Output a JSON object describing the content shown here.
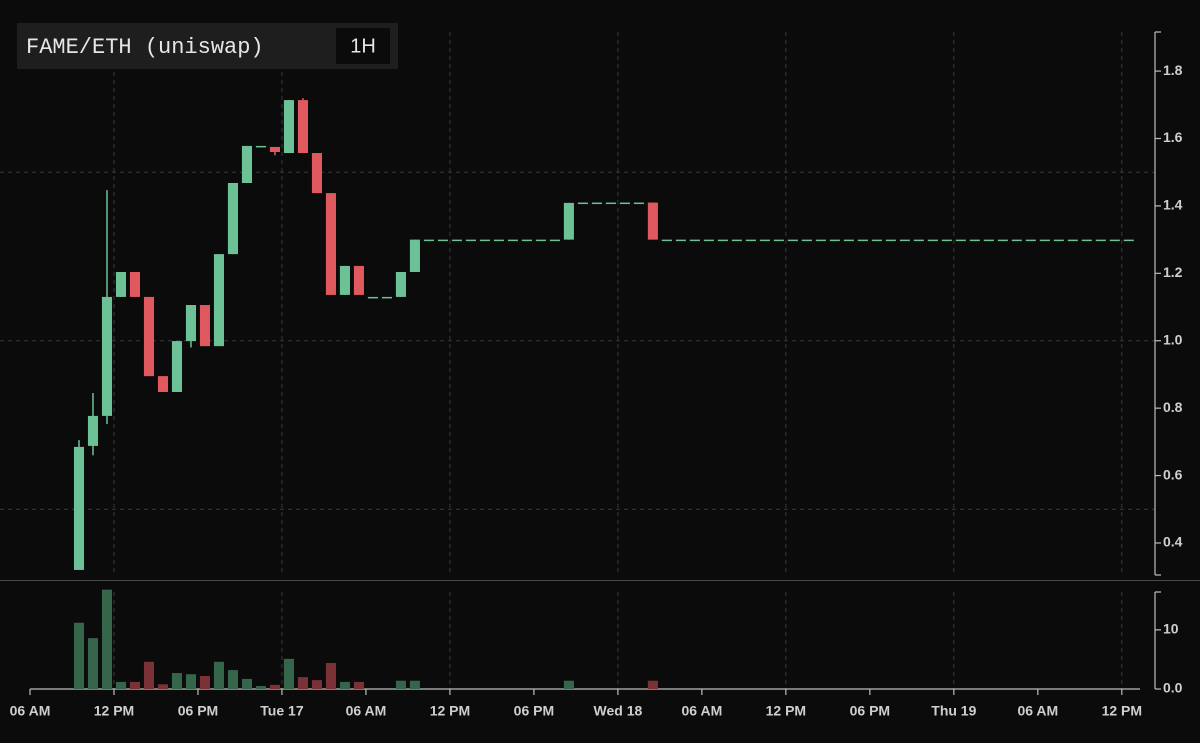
{
  "chart_data": {
    "type": "candlestick",
    "title": "FAME/ETH (uniswap)",
    "interval": "1H",
    "x": [
      3,
      4,
      5,
      6,
      7,
      8,
      9,
      10,
      11,
      12,
      13,
      14,
      15,
      16,
      17,
      18,
      19,
      20,
      21,
      22,
      23,
      24,
      25,
      26,
      27,
      28,
      29,
      30,
      31,
      32,
      33,
      34,
      35,
      36,
      37,
      38,
      39,
      40,
      41,
      42,
      43,
      44,
      45,
      46,
      47,
      48,
      49,
      50,
      51,
      52,
      53,
      54,
      55,
      56,
      57,
      58,
      59,
      60,
      61,
      62,
      63,
      64,
      65,
      66,
      67,
      68,
      69,
      70,
      71,
      72,
      73,
      74,
      75,
      76,
      77,
      78
    ],
    "open": [
      0.32,
      0.688,
      0.777,
      1.13,
      1.204,
      1.13,
      0.895,
      0.848,
      0.999,
      1.106,
      0.984,
      1.257,
      1.468,
      1.575,
      1.575,
      1.557,
      1.714,
      1.557,
      1.438,
      1.136,
      1.222,
      1.13,
      1.13,
      1.13,
      1.204,
      1.3,
      1.3,
      1.3,
      1.3,
      1.3,
      1.3,
      1.3,
      1.3,
      1.3,
      1.3,
      1.3,
      1.41,
      1.41,
      1.41,
      1.41,
      1.41,
      1.41,
      1.3,
      1.3,
      1.3,
      1.3,
      1.3,
      1.3,
      1.3,
      1.3,
      1.3,
      1.3,
      1.3,
      1.3,
      1.3,
      1.3,
      1.3,
      1.3,
      1.3,
      1.3,
      1.3,
      1.3,
      1.3,
      1.3,
      1.3,
      1.3,
      1.3,
      1.3,
      1.3,
      1.3,
      1.3,
      1.3,
      1.3,
      1.3,
      1.3,
      1.3
    ],
    "high": [
      0.705,
      0.845,
      1.447,
      1.204,
      1.204,
      1.13,
      0.895,
      0.999,
      1.106,
      1.106,
      1.257,
      1.468,
      1.578,
      1.578,
      1.575,
      1.714,
      1.72,
      1.557,
      1.438,
      1.222,
      1.222,
      1.13,
      1.13,
      1.204,
      1.3,
      1.3,
      1.3,
      1.3,
      1.3,
      1.3,
      1.3,
      1.3,
      1.3,
      1.3,
      1.3,
      1.409,
      1.41,
      1.41,
      1.41,
      1.41,
      1.41,
      1.41,
      1.3,
      1.3,
      1.3,
      1.3,
      1.3,
      1.3,
      1.3,
      1.3,
      1.3,
      1.3,
      1.3,
      1.3,
      1.3,
      1.3,
      1.3,
      1.3,
      1.3,
      1.3,
      1.3,
      1.3,
      1.3,
      1.3,
      1.3,
      1.3,
      1.3,
      1.3,
      1.3,
      1.3,
      1.3,
      1.3,
      1.3,
      1.3,
      1.3,
      1.3
    ],
    "low": [
      0.32,
      0.66,
      0.753,
      1.13,
      1.13,
      0.895,
      0.848,
      0.848,
      0.98,
      0.984,
      0.984,
      1.257,
      1.468,
      1.575,
      1.55,
      1.557,
      1.557,
      1.438,
      1.136,
      1.136,
      1.136,
      1.13,
      1.13,
      1.13,
      1.204,
      1.3,
      1.3,
      1.3,
      1.3,
      1.3,
      1.3,
      1.3,
      1.3,
      1.3,
      1.3,
      1.3,
      1.41,
      1.41,
      1.41,
      1.41,
      1.41,
      1.3,
      1.3,
      1.3,
      1.3,
      1.3,
      1.3,
      1.3,
      1.3,
      1.3,
      1.3,
      1.3,
      1.3,
      1.3,
      1.3,
      1.3,
      1.3,
      1.3,
      1.3,
      1.3,
      1.3,
      1.3,
      1.3,
      1.3,
      1.3,
      1.3,
      1.3,
      1.3,
      1.3,
      1.3,
      1.3,
      1.3,
      1.3,
      1.3,
      1.3,
      1.3
    ],
    "close": [
      0.685,
      0.777,
      1.13,
      1.204,
      1.13,
      0.895,
      0.848,
      0.999,
      1.106,
      0.984,
      1.257,
      1.468,
      1.578,
      1.578,
      1.56,
      1.714,
      1.557,
      1.438,
      1.136,
      1.222,
      1.136,
      1.13,
      1.13,
      1.204,
      1.3,
      1.3,
      1.3,
      1.3,
      1.3,
      1.3,
      1.3,
      1.3,
      1.3,
      1.3,
      1.3,
      1.409,
      1.41,
      1.41,
      1.41,
      1.41,
      1.41,
      1.3,
      1.3,
      1.3,
      1.3,
      1.3,
      1.3,
      1.3,
      1.3,
      1.3,
      1.3,
      1.3,
      1.3,
      1.3,
      1.3,
      1.3,
      1.3,
      1.3,
      1.3,
      1.3,
      1.3,
      1.3,
      1.3,
      1.3,
      1.3,
      1.3,
      1.3,
      1.3,
      1.3,
      1.3,
      1.3,
      1.3,
      1.3,
      1.3,
      1.3,
      1.3
    ],
    "volume": [
      11.2,
      8.6,
      16.8,
      1.2,
      1.2,
      4.6,
      0.8,
      2.7,
      2.5,
      2.2,
      4.6,
      3.2,
      1.7,
      0.5,
      0.7,
      5.1,
      2.0,
      1.5,
      4.4,
      1.2,
      1.2,
      0,
      0,
      1.4,
      1.4,
      0,
      0,
      0,
      0,
      0,
      0,
      0,
      0,
      0,
      0,
      1.4,
      0,
      0,
      0,
      0,
      0,
      1.4,
      0,
      0,
      0,
      0,
      0,
      0,
      0,
      0,
      0,
      0,
      0,
      0,
      0,
      0,
      0,
      0,
      0,
      0,
      0,
      0,
      0,
      0,
      0,
      0,
      0,
      0,
      0,
      0,
      0,
      0,
      0,
      0,
      0,
      0
    ],
    "up_color": "#6cc197",
    "down_color": "#e0595f",
    "up_volume_color": "#35654b",
    "down_volume_color": "#7b3237",
    "xlim": [
      0,
      79.3
    ],
    "xticks": [
      {
        "value": 0,
        "label": "06 AM"
      },
      {
        "value": 6,
        "label": "12 PM"
      },
      {
        "value": 12,
        "label": "06 PM"
      },
      {
        "value": 18,
        "label": "Tue 17"
      },
      {
        "value": 24,
        "label": "06 AM"
      },
      {
        "value": 30,
        "label": "12 PM"
      },
      {
        "value": 36,
        "label": "06 PM"
      },
      {
        "value": 42,
        "label": "Wed 18"
      },
      {
        "value": 48,
        "label": "06 AM"
      },
      {
        "value": 54,
        "label": "12 PM"
      },
      {
        "value": 60,
        "label": "06 PM"
      },
      {
        "value": 66,
        "label": "Thu 19"
      },
      {
        "value": 72,
        "label": "06 AM"
      },
      {
        "value": 78,
        "label": "12 PM"
      }
    ],
    "ylim": [
      0.305,
      1.916
    ],
    "yticks": [
      0.4,
      0.6,
      0.8,
      {
        "value": 1,
        "label": "1.0"
      },
      1.2,
      1.4,
      1.6,
      1.8
    ],
    "y2lim": [
      0,
      16.4
    ],
    "y2ticks": [
      {
        "value": 0,
        "label": "0.0"
      },
      10
    ],
    "xgrid": [
      6,
      18,
      30,
      42,
      54,
      66,
      78
    ],
    "ygrid": [
      0.5,
      1.0,
      1.5
    ]
  }
}
